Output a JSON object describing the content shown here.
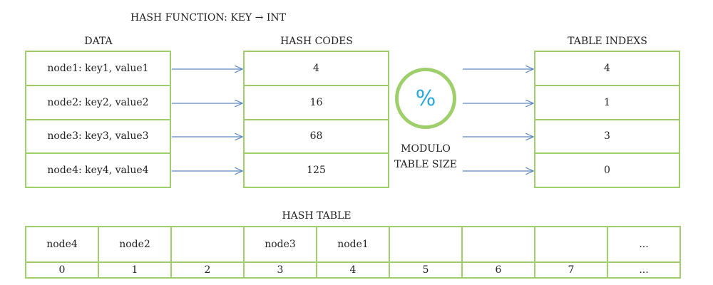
{
  "title": "HASH FUNCTION: KEY → INT",
  "data_column": {
    "header": "DATA",
    "items": [
      "node1: key1, value1",
      "node2: key2, value2",
      "node3: key3, value3",
      "node4: key4, value4"
    ]
  },
  "hash_codes_column": {
    "header": "HASH CODES",
    "items": [
      "4",
      "16",
      "68",
      "125"
    ]
  },
  "modulo": {
    "symbol": "%",
    "line1": "MODULO",
    "line2": "TABLE SIZE"
  },
  "table_indexes_column": {
    "header": "TABLE INDEXS",
    "items": [
      "4",
      "1",
      "3",
      "0"
    ]
  },
  "hash_table": {
    "header": "HASH TABLE",
    "slots": [
      "node4",
      "node2",
      "",
      "node3",
      "node1",
      "",
      "",
      "",
      "..."
    ],
    "indices": [
      "0",
      "1",
      "2",
      "3",
      "4",
      "5",
      "6",
      "7",
      "..."
    ]
  },
  "colors": {
    "border": "#9fcf6b",
    "arrow": "#5b86c5",
    "modulo_symbol": "#2aa8d8"
  }
}
